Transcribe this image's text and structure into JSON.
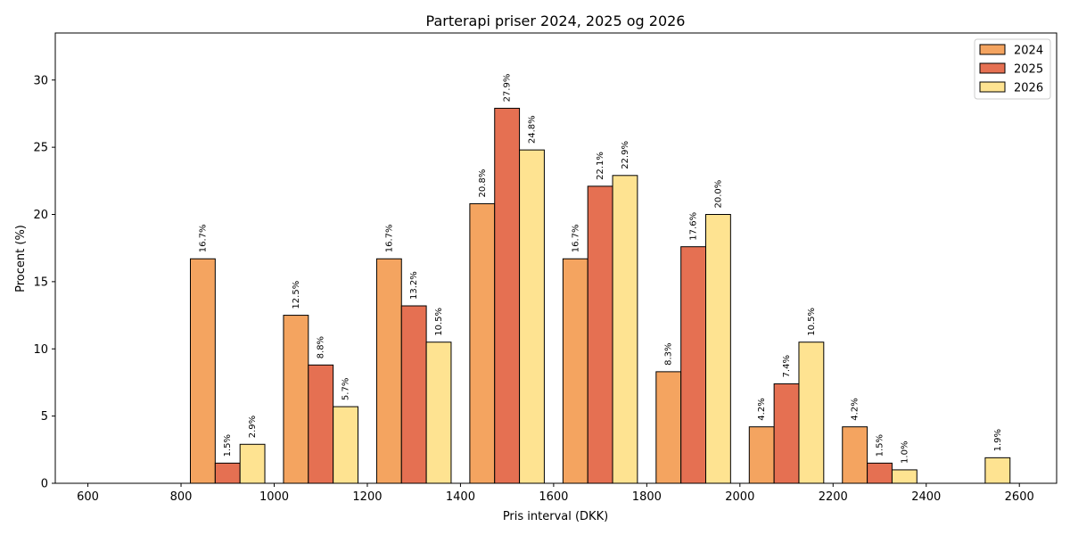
{
  "chart_data": {
    "type": "bar",
    "title": "Parterapi priser 2024, 2025 og 2026",
    "xlabel": "Pris interval (DKK)",
    "ylabel": "Procent (%)",
    "xlim": [
      530,
      2680
    ],
    "ylim": [
      0,
      33.5
    ],
    "xticks": [
      600,
      800,
      1000,
      1200,
      1400,
      1600,
      1800,
      2000,
      2200,
      2400,
      2600
    ],
    "yticks": [
      0,
      5,
      10,
      15,
      20,
      25,
      30
    ],
    "bin_centers": [
      700,
      900,
      1100,
      1300,
      1500,
      1700,
      1900,
      2100,
      2300,
      2500
    ],
    "bar_width": 53.3,
    "legend_position": "top-right",
    "grid": false,
    "series": [
      {
        "name": "2024",
        "color": "#f4a460",
        "values": [
          0,
          16.7,
          12.5,
          16.7,
          20.8,
          16.7,
          8.3,
          4.2,
          4.2,
          0
        ],
        "labels": [
          "",
          "16.7%",
          "12.5%",
          "16.7%",
          "20.8%",
          "16.7%",
          "8.3%",
          "4.2%",
          "4.2%",
          ""
        ]
      },
      {
        "name": "2025",
        "color": "#e57052",
        "values": [
          0,
          1.5,
          8.8,
          13.2,
          27.9,
          22.1,
          17.6,
          7.4,
          1.5,
          0
        ],
        "labels": [
          "",
          "1.5%",
          "8.8%",
          "13.2%",
          "27.9%",
          "22.1%",
          "17.6%",
          "7.4%",
          "1.5%",
          ""
        ]
      },
      {
        "name": "2026",
        "color": "#fee391",
        "values": [
          0,
          2.9,
          5.7,
          10.5,
          24.8,
          22.9,
          20.0,
          10.5,
          1.0,
          1.9
        ],
        "labels": [
          "",
          "2.9%",
          "5.7%",
          "10.5%",
          "24.8%",
          "22.9%",
          "20.0%",
          "10.5%",
          "1.0%",
          "1.9%"
        ]
      }
    ]
  }
}
